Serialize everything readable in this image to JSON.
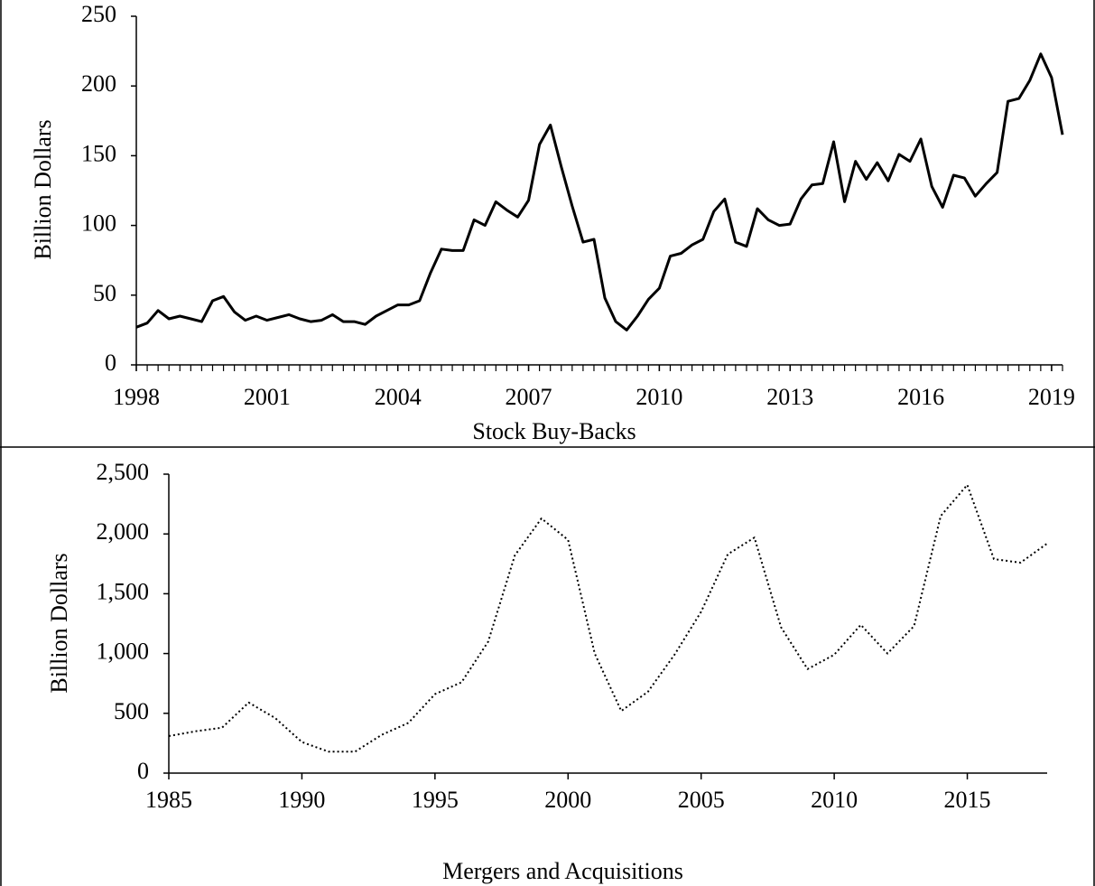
{
  "chart_data": [
    {
      "type": "line",
      "title": "Stock Buy-Backs",
      "ylabel": "Billion Dollars",
      "x": [
        1998,
        1998.25,
        1998.5,
        1998.75,
        1999,
        1999.25,
        1999.5,
        1999.75,
        2000,
        2000.25,
        2000.5,
        2000.75,
        2001,
        2001.25,
        2001.5,
        2001.75,
        2002,
        2002.25,
        2002.5,
        2002.75,
        2003,
        2003.25,
        2003.5,
        2003.75,
        2004,
        2004.25,
        2004.5,
        2004.75,
        2005,
        2005.25,
        2005.5,
        2005.75,
        2006,
        2006.25,
        2006.5,
        2006.75,
        2007,
        2007.25,
        2007.5,
        2007.75,
        2008,
        2008.25,
        2008.5,
        2008.75,
        2009,
        2009.25,
        2009.5,
        2009.75,
        2010,
        2010.25,
        2010.5,
        2010.75,
        2011,
        2011.25,
        2011.5,
        2011.75,
        2012,
        2012.25,
        2012.5,
        2012.75,
        2013,
        2013.25,
        2013.5,
        2013.75,
        2014,
        2014.25,
        2014.5,
        2014.75,
        2015,
        2015.25,
        2015.5,
        2015.75,
        2016,
        2016.25,
        2016.5,
        2016.75,
        2017,
        2017.25,
        2017.5,
        2017.75,
        2018,
        2018.25,
        2018.5,
        2018.75,
        2019,
        2019.25
      ],
      "values": [
        27,
        30,
        39,
        33,
        35,
        33,
        31,
        46,
        49,
        38,
        32,
        35,
        32,
        34,
        36,
        33,
        31,
        32,
        36,
        31,
        31,
        29,
        35,
        39,
        43,
        43,
        46,
        66,
        83,
        82,
        82,
        104,
        100,
        117,
        111,
        106,
        118,
        158,
        172,
        142,
        114,
        88,
        90,
        48,
        31,
        25,
        35,
        47,
        55,
        78,
        80,
        86,
        90,
        110,
        119,
        88,
        85,
        112,
        104,
        100,
        101,
        119,
        129,
        130,
        160,
        117,
        146,
        133,
        145,
        132,
        151,
        146,
        162,
        128,
        113,
        136,
        134,
        121,
        130,
        138,
        189,
        191,
        204,
        223,
        206,
        165
      ],
      "color": "#000000",
      "line_style": "solid",
      "xlim": [
        1998,
        2019.25
      ],
      "xticks": [
        1998,
        2001,
        2004,
        2007,
        2010,
        2013,
        2016,
        2019
      ],
      "ylim": [
        0,
        250
      ],
      "yticks": [
        0,
        50,
        100,
        150,
        200,
        250
      ]
    },
    {
      "type": "line",
      "title": "Mergers and Acquisitions",
      "ylabel": "Billion Dollars",
      "x": [
        1985,
        1986,
        1987,
        1988,
        1989,
        1990,
        1991,
        1992,
        1993,
        1994,
        1995,
        1996,
        1997,
        1998,
        1999,
        2000,
        2001,
        2002,
        2003,
        2004,
        2005,
        2006,
        2007,
        2008,
        2009,
        2010,
        2011,
        2012,
        2013,
        2014,
        2015,
        2016,
        2017,
        2018
      ],
      "values": [
        310,
        350,
        380,
        590,
        460,
        260,
        180,
        180,
        320,
        420,
        660,
        760,
        1100,
        1820,
        2130,
        1950,
        1000,
        520,
        680,
        990,
        1350,
        1830,
        1970,
        1220,
        870,
        990,
        1240,
        1000,
        1230,
        2150,
        2410,
        1790,
        1760,
        1920
      ],
      "color": "#000000",
      "line_style": "dotted",
      "xlim": [
        1985,
        2018
      ],
      "xticks": [
        1985,
        1990,
        1995,
        2000,
        2005,
        2010,
        2015
      ],
      "ylim": [
        0,
        2500
      ],
      "yticks": [
        0,
        {
          "value": 500,
          "label": "500"
        },
        {
          "value": 1000,
          "label": "1,000"
        },
        {
          "value": 1500,
          "label": "1,500"
        },
        {
          "value": 2000,
          "label": "2,000"
        },
        {
          "value": 2500,
          "label": "2,500"
        }
      ]
    }
  ]
}
